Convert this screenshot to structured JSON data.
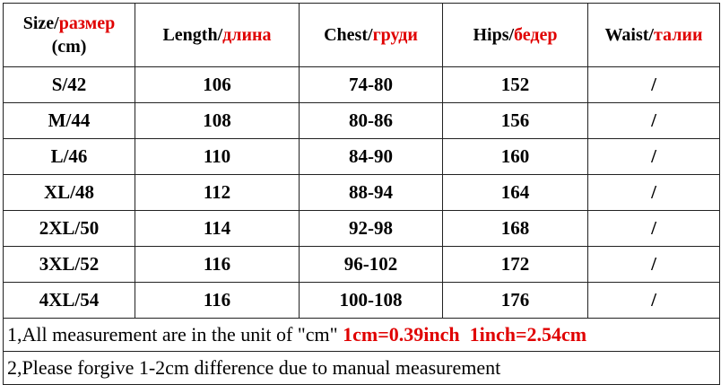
{
  "table": {
    "headers": [
      {
        "text": "Size/",
        "accent": "размер",
        "extra": "(cm)"
      },
      {
        "text": "Length/",
        "accent": "длина"
      },
      {
        "text": "Chest/",
        "accent": "груди"
      },
      {
        "text": "Hips/",
        "accent": "бедер"
      },
      {
        "text": "Waist/",
        "accent": "талии"
      }
    ],
    "rows": [
      [
        "S/42",
        "106",
        "74-80",
        "152",
        "/"
      ],
      [
        "M/44",
        "108",
        "80-86",
        "156",
        "/"
      ],
      [
        "L/46",
        "110",
        "84-90",
        "160",
        "/"
      ],
      [
        "XL/48",
        "112",
        "88-94",
        "164",
        "/"
      ],
      [
        "2XL/50",
        "114",
        "92-98",
        "168",
        "/"
      ],
      [
        "3XL/52",
        "116",
        "96-102",
        "172",
        "/"
      ],
      [
        "4XL/54",
        "116",
        "100-108",
        "176",
        "/"
      ]
    ]
  },
  "notes": [
    {
      "text": "1,All measurement are in the unit of \"cm\"",
      "accent": "1cm=0.39inch  1inch=2.54cm"
    },
    {
      "text": "2,Please forgive 1-2cm difference due to manual measurement"
    }
  ]
}
